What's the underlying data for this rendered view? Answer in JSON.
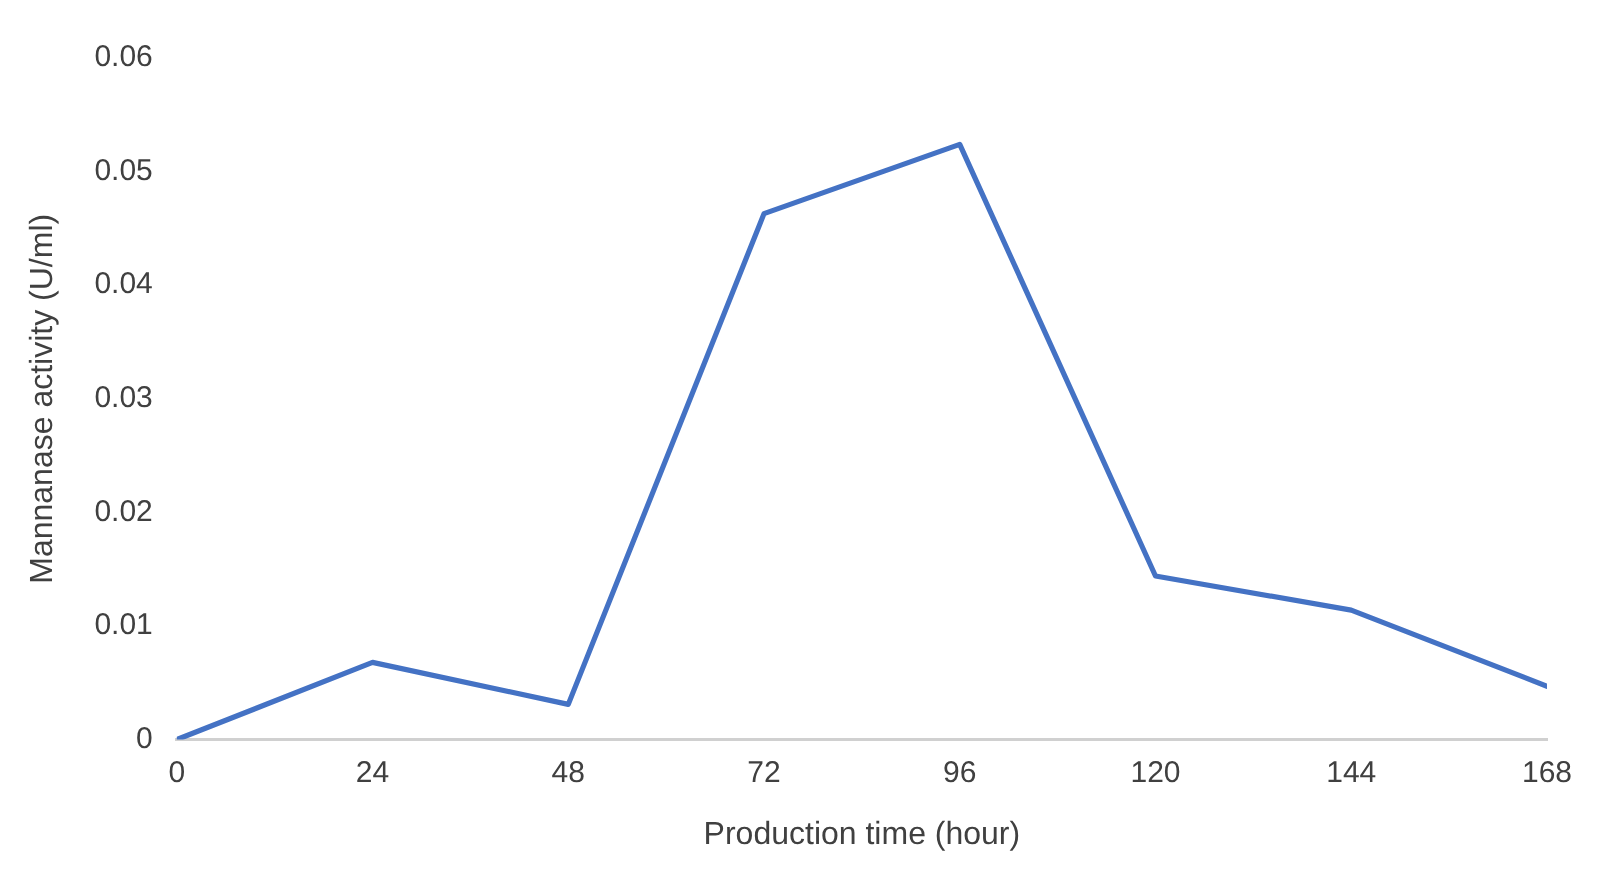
{
  "chart_data": {
    "type": "line",
    "xlabel": "Production time (hour)",
    "ylabel": "Mannanase activity (U/ml)",
    "x": [
      0,
      24,
      48,
      72,
      96,
      120,
      144,
      168
    ],
    "series": [
      {
        "color": "#4472c4",
        "values": [
          0,
          0.0068,
          0.0031,
          0.0463,
          0.0524,
          0.0144,
          0.0114,
          0.0047
        ]
      }
    ],
    "xlim": [
      0,
      168
    ],
    "xticks": [
      0,
      24,
      48,
      72,
      96,
      120,
      144,
      168
    ],
    "ylim": [
      0,
      0.06
    ],
    "yticks": [
      0,
      0.01,
      0.02,
      0.03,
      0.04,
      0.05,
      0.06
    ],
    "grid": false,
    "legend": false,
    "marker": "none",
    "line_style": "solid"
  }
}
